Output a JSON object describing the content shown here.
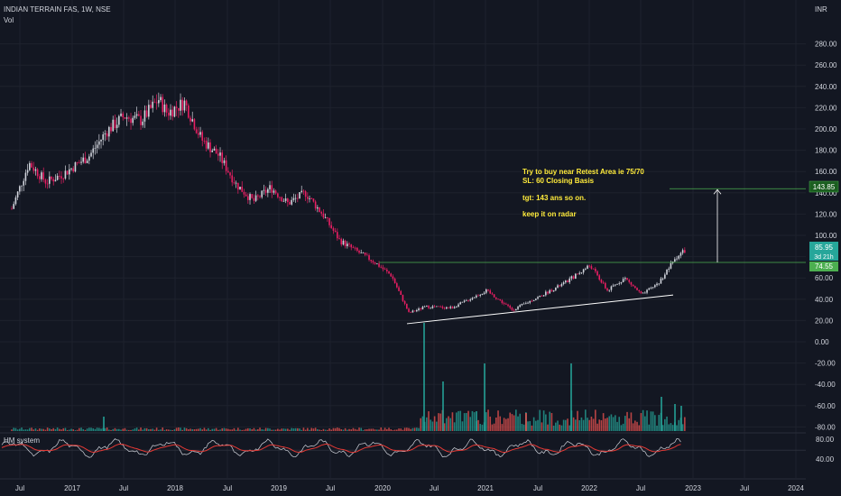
{
  "header": {
    "symbol_line": "INDIAN TERRAIN FAS, 1W, NSE",
    "volume_label": "Vol",
    "currency": "INR"
  },
  "annotation": {
    "line1": "Try to buy near Retest Area ie 75/70",
    "line2": "SL: 60 Closing Basis",
    "line3": "tgt: 143 ans so on.",
    "line4": "keep it on radar"
  },
  "price_tags": {
    "target": "143.85",
    "last": "85.95",
    "countdown": "3d 21h",
    "support": "74.55"
  },
  "indicator": {
    "title": "HM system",
    "axis_labels": [
      "80.00",
      "40.00"
    ]
  },
  "colors": {
    "background": "#131722",
    "up": "#26a69a",
    "down": "#ef5350",
    "candle_up": "#d1d4dc",
    "candle_down": "#e91e63",
    "guide": "#4caf50",
    "annotation": "#ffeb3b",
    "oscillator": "#d1d4dc",
    "signal": "#e53935"
  },
  "chart_data": {
    "type": "candlestick",
    "title": "INDIAN TERRAIN FAS, 1W, NSE",
    "y_unit": "INR",
    "y_ticks": [
      280,
      260,
      240,
      220,
      200,
      180,
      160,
      140,
      120,
      100,
      80,
      60,
      40,
      20,
      0,
      -20,
      -40,
      -60,
      -80
    ],
    "x_ticks": [
      "Jul",
      "2017",
      "Jul",
      "2018",
      "Jul",
      "2019",
      "Jul",
      "2020",
      "Jul",
      "2021",
      "Jul",
      "2022",
      "Jul",
      "2023",
      "Jul",
      "2024"
    ],
    "price_path": [
      {
        "date": "2016-06",
        "close": 125
      },
      {
        "date": "2016-08",
        "close": 168
      },
      {
        "date": "2016-10",
        "close": 150
      },
      {
        "date": "2016-12",
        "close": 158
      },
      {
        "date": "2017-03",
        "close": 175
      },
      {
        "date": "2017-05",
        "close": 198
      },
      {
        "date": "2017-07",
        "close": 212
      },
      {
        "date": "2017-09",
        "close": 208
      },
      {
        "date": "2017-11",
        "close": 228
      },
      {
        "date": "2017-12",
        "close": 215
      },
      {
        "date": "2018-02",
        "close": 225
      },
      {
        "date": "2018-04",
        "close": 190
      },
      {
        "date": "2018-06",
        "close": 175
      },
      {
        "date": "2018-08",
        "close": 148
      },
      {
        "date": "2018-10",
        "close": 132
      },
      {
        "date": "2018-12",
        "close": 145
      },
      {
        "date": "2019-02",
        "close": 130
      },
      {
        "date": "2019-04",
        "close": 140
      },
      {
        "date": "2019-06",
        "close": 120
      },
      {
        "date": "2019-08",
        "close": 95
      },
      {
        "date": "2019-10",
        "close": 85
      },
      {
        "date": "2019-12",
        "close": 75
      },
      {
        "date": "2020-02",
        "close": 62
      },
      {
        "date": "2020-04",
        "close": 27
      },
      {
        "date": "2020-06",
        "close": 33
      },
      {
        "date": "2020-09",
        "close": 32
      },
      {
        "date": "2021-01",
        "close": 48
      },
      {
        "date": "2021-04",
        "close": 30
      },
      {
        "date": "2021-07",
        "close": 42
      },
      {
        "date": "2021-10",
        "close": 55
      },
      {
        "date": "2022-01",
        "close": 72
      },
      {
        "date": "2022-03",
        "close": 48
      },
      {
        "date": "2022-05",
        "close": 60
      },
      {
        "date": "2022-07",
        "close": 44
      },
      {
        "date": "2022-09",
        "close": 56
      },
      {
        "date": "2022-11",
        "close": 80
      },
      {
        "date": "2022-12",
        "close": 85.95
      }
    ],
    "horizontal_levels": [
      {
        "label": "Retest Area",
        "value": 74.55
      },
      {
        "label": "Target",
        "value": 143.85
      }
    ],
    "trendline": {
      "from": {
        "date": "2020-05",
        "value": 17
      },
      "to": {
        "date": "2022-12",
        "value": 44
      }
    },
    "last_price": 85.95,
    "volume": "bars at bottom of price pane",
    "indicator_range": [
      40,
      80
    ],
    "grid": true
  }
}
